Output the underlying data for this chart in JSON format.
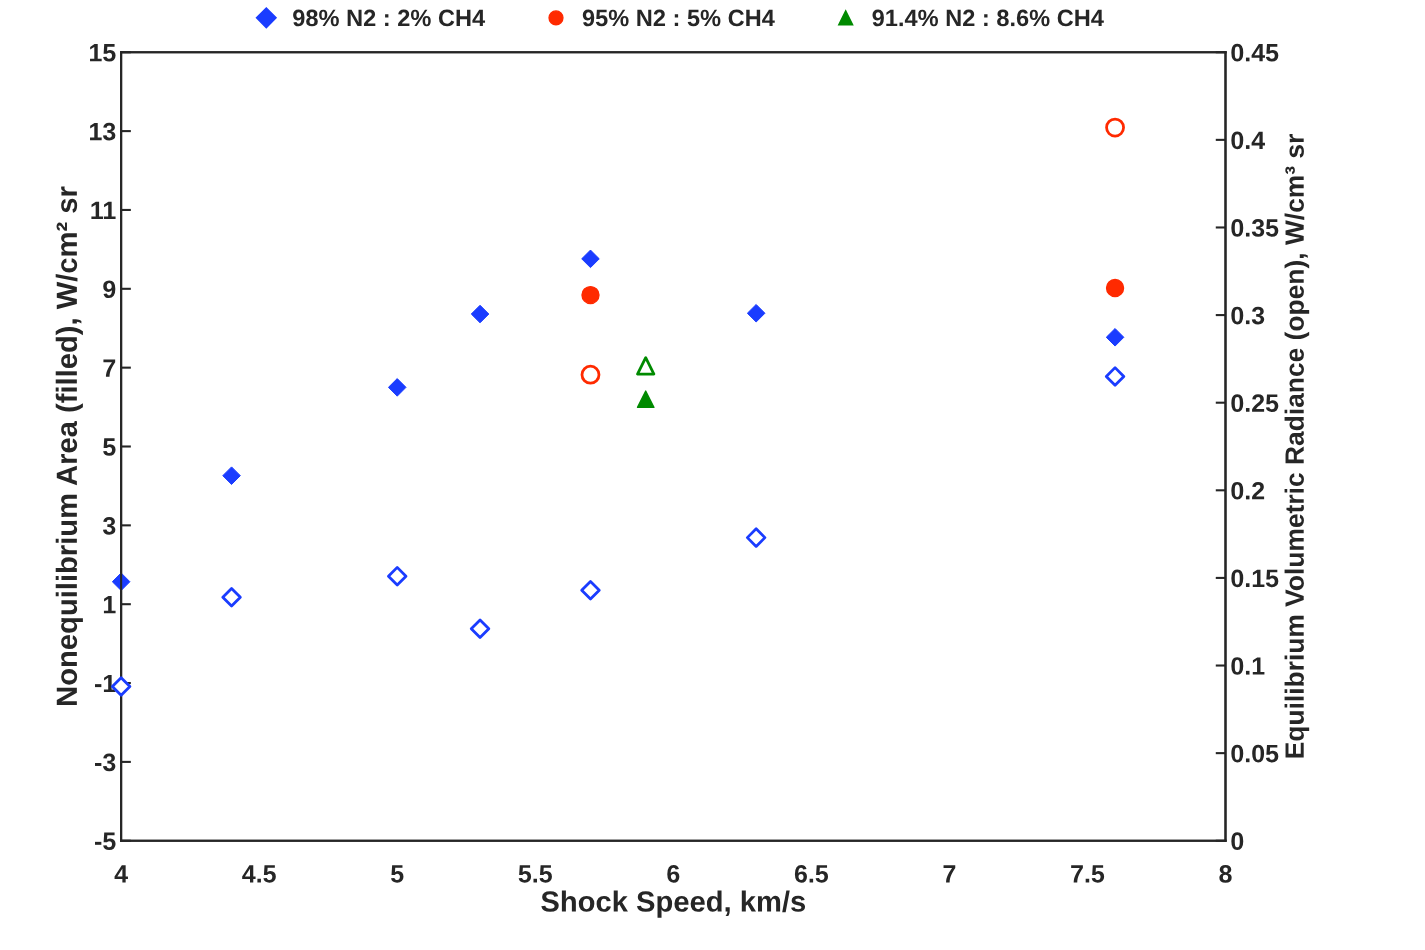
{
  "chart_data": {
    "type": "scatter",
    "xlabel": "Shock Speed, km/s",
    "ylabel": "Nonequilibrium Area (filled), W/cm² sr",
    "y2label": "Equilibrium Volumetric Radiance (open), W/cm³ sr",
    "xlim": [
      4,
      8
    ],
    "xticks": [
      4,
      4.5,
      5,
      5.5,
      6,
      6.5,
      7,
      7.5,
      8
    ],
    "ylim": [
      -5,
      15
    ],
    "yticks": [
      -5,
      -3,
      -1,
      1,
      3,
      5,
      7,
      9,
      11,
      13,
      15
    ],
    "y2lim": [
      0,
      0.45
    ],
    "y2ticks": [
      0,
      0.05,
      0.1,
      0.15,
      0.2,
      0.25,
      0.3,
      0.35,
      0.4,
      0.45
    ],
    "legend": "top",
    "grid": false,
    "series": [
      {
        "name": "98% N2 : 2% CH4",
        "color": "#1a3cff",
        "marker": "diamond",
        "x": [
          4,
          4.4,
          5,
          5.3,
          5.7,
          6.3,
          7.6
        ],
        "values": [
          1.57,
          4.26,
          6.5,
          8.36,
          9.76,
          8.38,
          7.77
        ]
      },
      {
        "name": "95% N2 : 5% CH4",
        "color": "#ff2a00",
        "marker": "circle",
        "x": [
          5.7,
          7.6
        ],
        "values": [
          8.84,
          9.02
        ]
      },
      {
        "name": "91.4% N2 : 8.6% CH4",
        "color": "#008a00",
        "marker": "triangle",
        "x": [
          5.9
        ],
        "values": [
          6.2
        ]
      },
      {
        "color": "#1a3cff",
        "marker": "diamond",
        "axis": "y2",
        "x": [
          4,
          4.4,
          5,
          5.3,
          5.7,
          6.3,
          7.6
        ],
        "values": [
          0.088,
          0.139,
          0.151,
          0.121,
          0.143,
          0.173,
          0.265
        ]
      },
      {
        "color": "#ff2a00",
        "marker": "circle",
        "axis": "y2",
        "x": [
          5.7,
          7.6
        ],
        "values": [
          0.266,
          0.407
        ]
      },
      {
        "color": "#008a00",
        "marker": "triangle",
        "axis": "y2",
        "x": [
          5.9
        ],
        "values": [
          0.271
        ]
      }
    ]
  }
}
